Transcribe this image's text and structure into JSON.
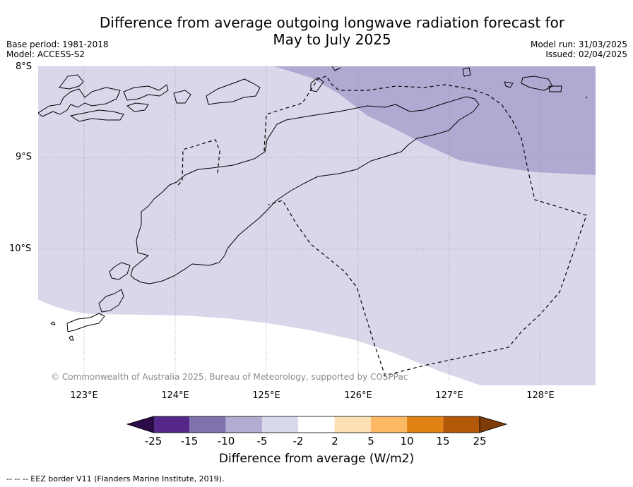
{
  "title_line1": "Difference from average outgoing longwave radiation forecast for",
  "title_line2": "May to July 2025",
  "meta": {
    "base_period": "Base period: 1981-2018",
    "model": "Model: ACCESS-S2",
    "model_run": "Model run: 31/03/2025",
    "issued": "Issued: 02/04/2025"
  },
  "map": {
    "lat_labels": [
      "8°S",
      "9°S",
      "10°S"
    ],
    "lon_labels": [
      "123°E",
      "124°E",
      "125°E",
      "126°E",
      "127°E",
      "128°E"
    ],
    "copyright": "© Commonwealth of Australia 2025, Bureau of Meteorology, supported by COSPPac",
    "colors": {
      "band_-15_-10": "#b0aad2",
      "band_-5_-2": "#d8d8ea",
      "band_-2_2": "#ffffff",
      "coastline": "#000000",
      "grid": "#888888"
    }
  },
  "colorbar": {
    "ticks": [
      "-25",
      "-15",
      "-10",
      "-5",
      "-2",
      "2",
      "5",
      "10",
      "15",
      "25"
    ],
    "colors": [
      "#2b0a47",
      "#542788",
      "#8073ac",
      "#b2abd2",
      "#d8daeb",
      "#ffffff",
      "#fee0b6",
      "#fdb863",
      "#e08214",
      "#b35806",
      "#7f3b08"
    ],
    "label": "Difference from average (W/m2)"
  },
  "footer": "--  --  -- EEZ border V11 (Flanders Marine Institute, 2019)."
}
